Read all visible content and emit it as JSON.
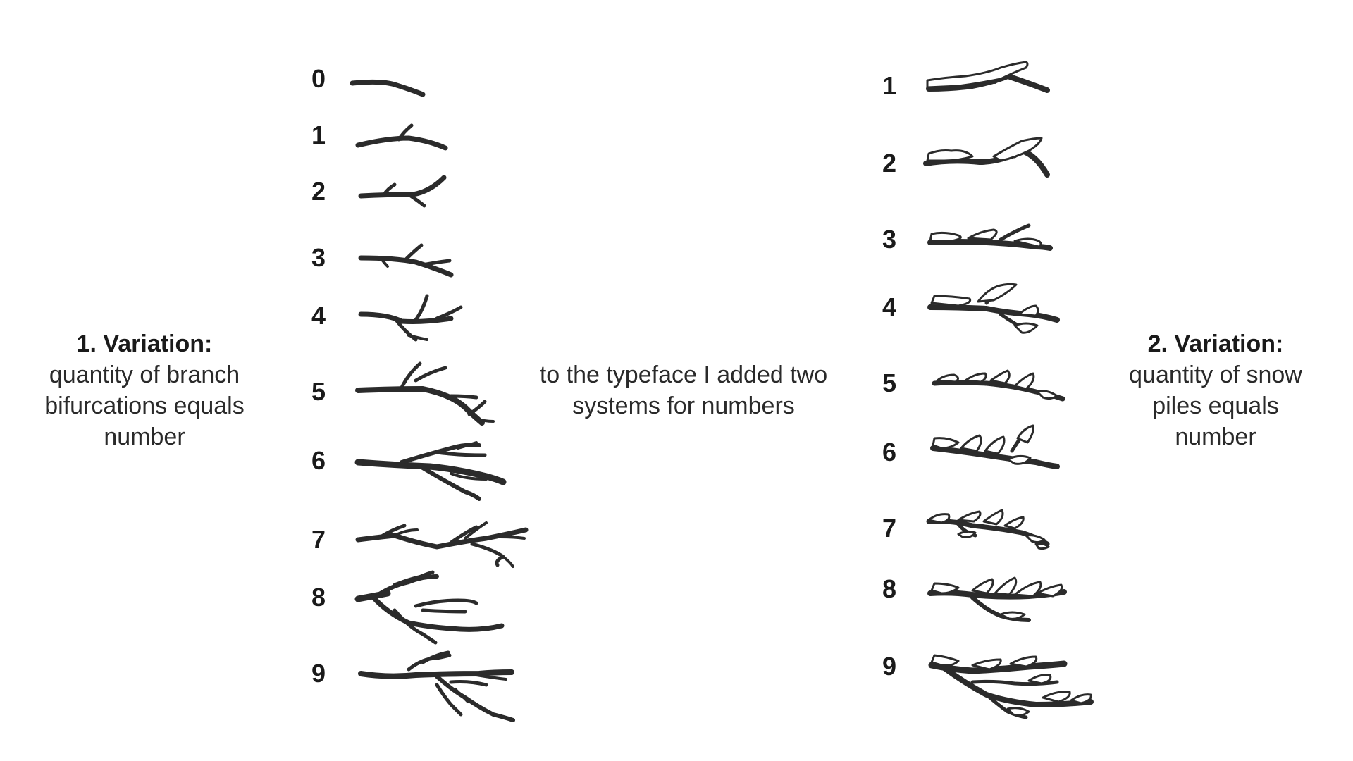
{
  "left_caption": {
    "title": "1. Variation:",
    "lines": [
      "quantity of branch",
      "bifurcations equals",
      "number"
    ]
  },
  "center_caption": {
    "lines": [
      "to the typeface I added two",
      "systems for numbers"
    ]
  },
  "right_caption": {
    "title": "2. Variation:",
    "lines": [
      "quantity of snow",
      "piles equals",
      "number"
    ]
  },
  "branch_system": {
    "numerals": [
      "0",
      "1",
      "2",
      "3",
      "4",
      "5",
      "6",
      "7",
      "8",
      "9"
    ]
  },
  "snow_system": {
    "numerals": [
      "1",
      "2",
      "3",
      "4",
      "5",
      "6",
      "7",
      "8",
      "9"
    ]
  },
  "colors": {
    "ink": "#2b2b2b",
    "background": "#ffffff"
  }
}
